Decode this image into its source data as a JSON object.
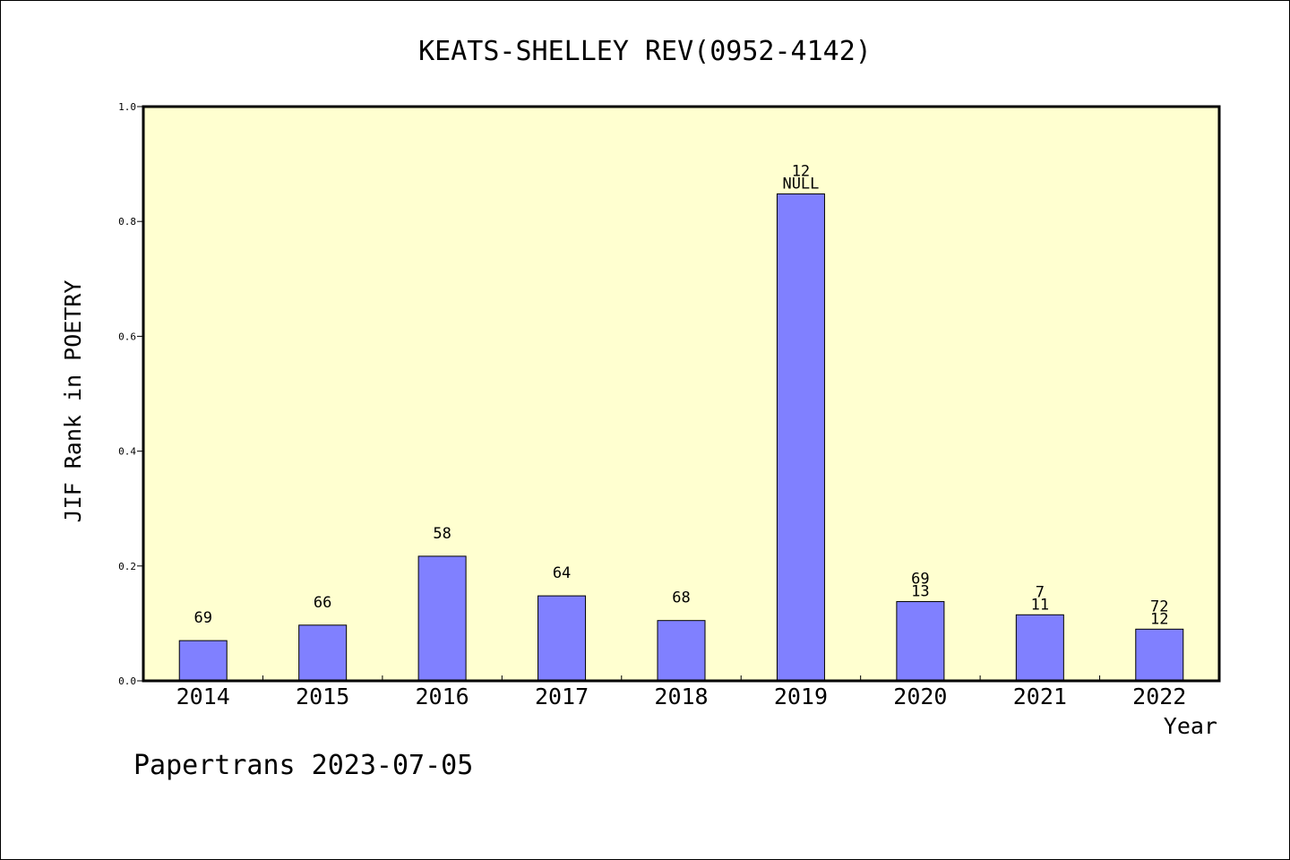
{
  "chart_data": {
    "type": "bar",
    "title": "KEATS-SHELLEY REV(0952-4142)",
    "xlabel": "Year",
    "ylabel": "JIF Rank in POETRY",
    "categories": [
      "2014",
      "2015",
      "2016",
      "2017",
      "2018",
      "2019",
      "2020",
      "2021",
      "2022"
    ],
    "values": [
      0.07,
      0.097,
      0.217,
      0.148,
      0.105,
      0.848,
      0.138,
      0.115,
      0.09
    ],
    "bar_labels": [
      [
        "69"
      ],
      [
        "66"
      ],
      [
        "58"
      ],
      [
        "64"
      ],
      [
        "68"
      ],
      [
        "12",
        "NULL"
      ],
      [
        "69",
        "13"
      ],
      [
        "7",
        "11"
      ],
      [
        "72",
        "12"
      ]
    ],
    "ylim": [
      0,
      1.0
    ],
    "yticks": [
      "0.0",
      "0.2",
      "0.4",
      "0.6",
      "0.8",
      "1.0"
    ],
    "grid": false,
    "bar_color": "#8080ff",
    "plot_background": "#ffffd0"
  },
  "footer": {
    "text": "Papertrans 2023-07-05"
  }
}
